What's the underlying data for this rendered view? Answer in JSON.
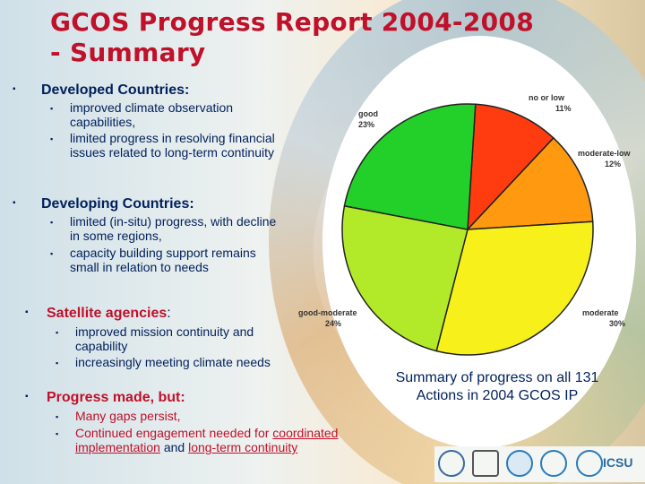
{
  "title": {
    "line1": "GCOS Progress Report 2004-2008",
    "line2": "- Summary"
  },
  "sections": [
    {
      "heading": "Developed Countries:",
      "bullets": [
        "improved climate observation capabilities,",
        "limited progress in resolving financial issues related to long-term continuity"
      ]
    },
    {
      "heading": "Developing Countries:",
      "bullets": [
        "limited (in-situ) progress, with decline in some regions,",
        "capacity building support remains small in relation to needs"
      ]
    },
    {
      "heading": "Satellite agencies",
      "heading_suffix": ":",
      "bullets": [
        "improved mission continuity and capability",
        "increasingly meeting climate needs"
      ]
    },
    {
      "heading": "Progress made, but:",
      "bullets": [
        "Many gaps persist,",
        "Continued engagement needed for",
        "coordinated implementation",
        "and",
        "long-term continuity"
      ]
    }
  ],
  "caption": "Summary of progress on all 131 Actions in 2004 GCOS IP",
  "logos": [
    "wmo-logo",
    "unesco-logo",
    "ioc-logo",
    "unep-logo",
    "icsu-logo"
  ],
  "logo_text": "ICSU",
  "chart_data": {
    "type": "pie",
    "title": "",
    "slices": [
      {
        "label": "no or low",
        "value": 11,
        "value_label": "11%",
        "color": "#ff3b10"
      },
      {
        "label": "moderate-low",
        "value": 12,
        "value_label": "12%",
        "color": "#ff9a10"
      },
      {
        "label": "moderate",
        "value": 30,
        "value_label": "30%",
        "color": "#f8f01a"
      },
      {
        "label": "good-moderate",
        "value": 24,
        "value_label": "24%",
        "color": "#b2ea2a"
      },
      {
        "label": "good",
        "value": 23,
        "value_label": "23%",
        "color": "#23d02a"
      }
    ]
  }
}
